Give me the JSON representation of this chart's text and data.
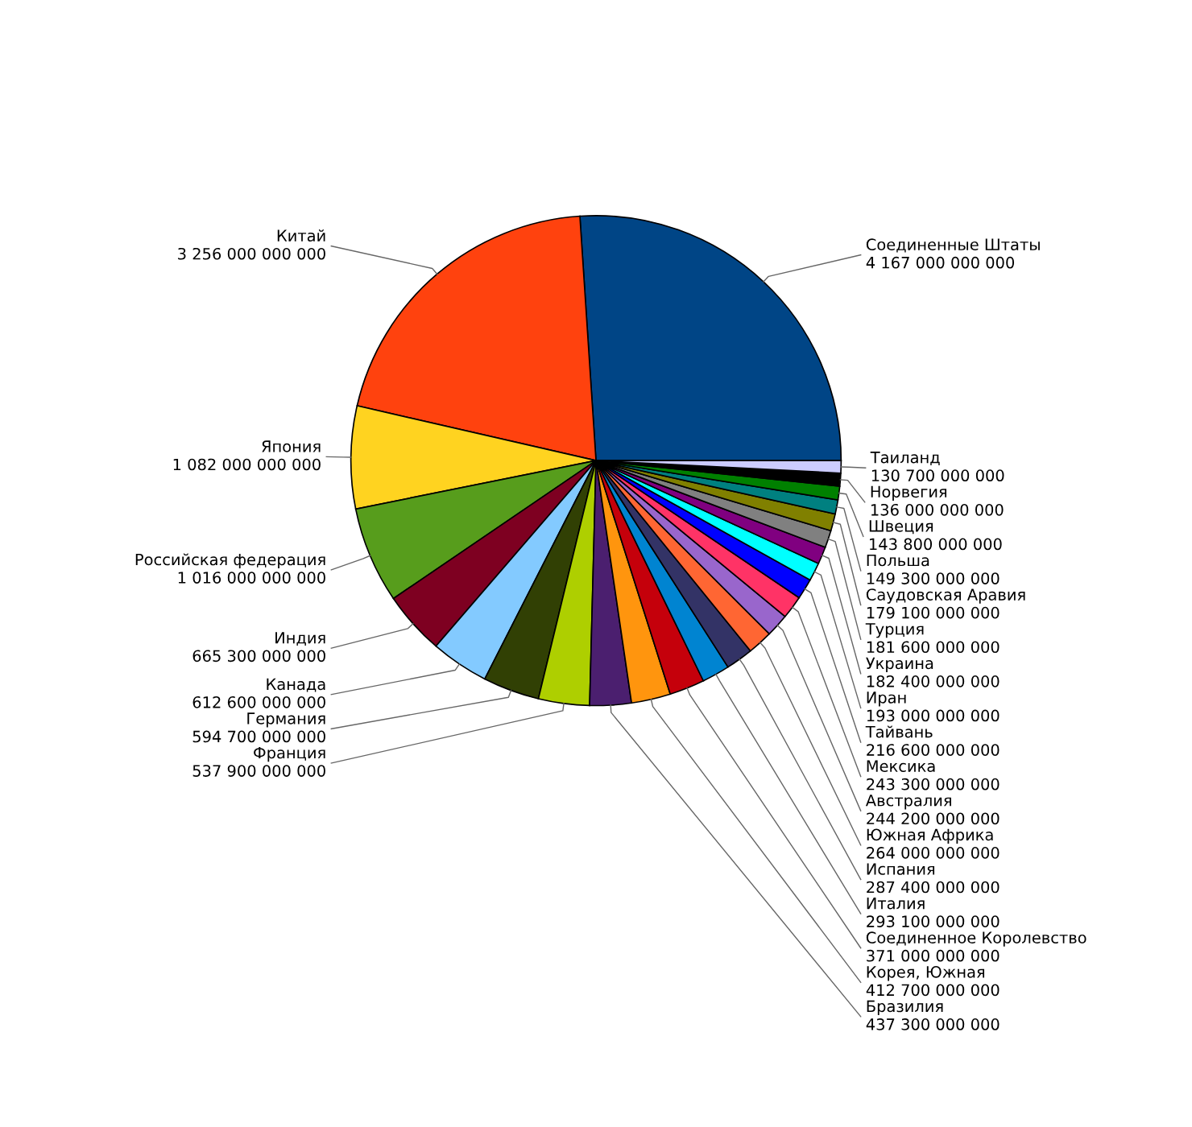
{
  "chart_data": {
    "type": "pie",
    "categories": [
      "Соединенные Штаты",
      "Китай",
      "Япония",
      "Российская федерация",
      "Индия",
      "Канада",
      "Германия",
      "Франция",
      "Бразилия",
      "Корея, Южная",
      "Соединенное Королевство",
      "Италия",
      "Испания",
      "Южная Африка",
      "Австралия",
      "Мексика",
      "Тайвань",
      "Иран",
      "Украина",
      "Турция",
      "Саудовская Аравия",
      "Польша",
      "Швеция",
      "Норвегия",
      "Таиланд"
    ],
    "values": [
      4167000000000,
      3256000000000,
      1082000000000,
      1016000000000,
      665300000000,
      612600000000,
      594700000000,
      537900000000,
      437300000000,
      412700000000,
      371000000000,
      293100000000,
      287400000000,
      264000000000,
      244200000000,
      243300000000,
      216600000000,
      193000000000,
      182400000000,
      181600000000,
      179100000000,
      149300000000,
      143800000000,
      136000000000,
      130700000000
    ],
    "colors": [
      "#004586",
      "#ff420e",
      "#ffd320",
      "#579d1c",
      "#7e0021",
      "#83caff",
      "#314004",
      "#aecf00",
      "#4b1f6f",
      "#ff950e",
      "#c5000b",
      "#0084d1",
      "#333366",
      "#ff6633",
      "#9966cc",
      "#ff3366",
      "#0000ff",
      "#00ffff",
      "#800080",
      "#808080",
      "#808000",
      "#008080",
      "#008000",
      "#000000",
      "#ccccff"
    ],
    "data_labels": true
  }
}
